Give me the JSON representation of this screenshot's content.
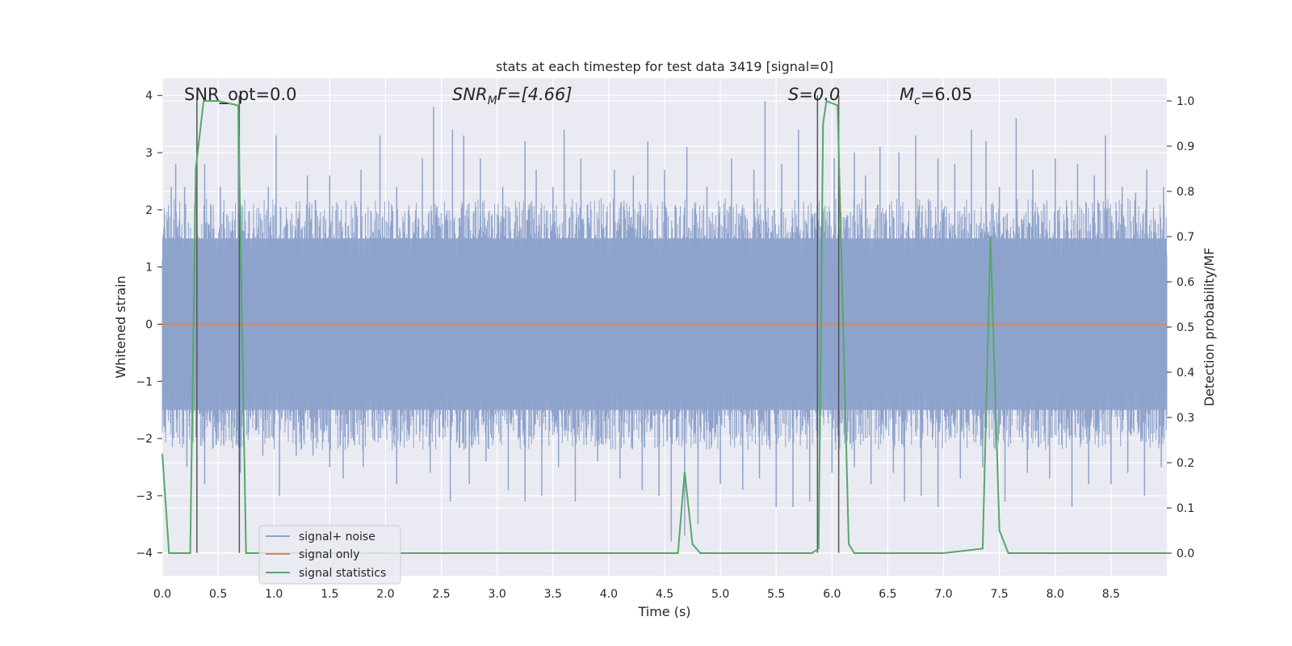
{
  "chart_data": {
    "type": "line",
    "title": "stats at each timestep for test data 3419 [signal=0]",
    "xlabel": "Time (s)",
    "ylabel": "Whitened strain",
    "ylabel_right": "Detection probability/MF",
    "xlim": [
      0.0,
      9.0
    ],
    "ylim": [
      -4.4,
      4.3
    ],
    "ylim_right": [
      -0.05,
      1.05
    ],
    "x_ticks": [
      "0.0",
      "0.5",
      "1.0",
      "1.5",
      "2.0",
      "2.5",
      "3.0",
      "3.5",
      "4.0",
      "4.5",
      "5.0",
      "5.5",
      "6.0",
      "6.5",
      "7.0",
      "7.5",
      "8.0",
      "8.5"
    ],
    "y_ticks": [
      "4",
      "3",
      "2",
      "1",
      "0",
      "−1",
      "−2",
      "−3",
      "−4"
    ],
    "y_tick_values": [
      4,
      3,
      2,
      1,
      0,
      -1,
      -2,
      -3,
      -4
    ],
    "y_right_ticks": [
      "1.0",
      "0.9",
      "0.8",
      "0.7",
      "0.6",
      "0.5",
      "0.4",
      "0.3",
      "0.2",
      "0.1",
      "0.0"
    ],
    "y_right_tick_values": [
      1.0,
      0.9,
      0.8,
      0.7,
      0.6,
      0.5,
      0.4,
      0.3,
      0.2,
      0.1,
      0.0
    ],
    "annotations": {
      "snr_opt": "SNR_opt=0.0",
      "snr_mf_prefix": "SNR",
      "snr_mf_sub": "M",
      "snr_mf_suffix": "F=[4.66]",
      "s_stat": "S=0.0",
      "mc_prefix": "M",
      "mc_sub": "c",
      "mc_suffix": "=6.05"
    },
    "series": [
      {
        "name": "signal+ noise",
        "color": "#8ea3cc",
        "axis": "left",
        "description_values": "dense noise, approx uniform band ±1.5 with spikes to ±3.9",
        "spikes_up": [
          [
            0.02,
            1.9
          ],
          [
            0.08,
            2.4
          ],
          [
            0.12,
            2.8
          ],
          [
            0.2,
            2.4
          ],
          [
            0.38,
            2.8
          ],
          [
            0.52,
            2.4
          ],
          [
            0.68,
            3.7
          ],
          [
            0.95,
            2.4
          ],
          [
            1.02,
            3.3
          ],
          [
            1.3,
            2.6
          ],
          [
            1.5,
            2.6
          ],
          [
            1.78,
            2.7
          ],
          [
            1.95,
            3.3
          ],
          [
            2.1,
            2.4
          ],
          [
            2.33,
            2.9
          ],
          [
            2.43,
            3.8
          ],
          [
            2.6,
            3.4
          ],
          [
            2.7,
            3.3
          ],
          [
            2.85,
            2.9
          ],
          [
            3.05,
            2.4
          ],
          [
            3.25,
            3.2
          ],
          [
            3.35,
            2.7
          ],
          [
            3.5,
            2.4
          ],
          [
            3.6,
            3.4
          ],
          [
            3.75,
            2.9
          ],
          [
            4.05,
            2.7
          ],
          [
            4.22,
            2.6
          ],
          [
            4.35,
            3.2
          ],
          [
            4.5,
            2.7
          ],
          [
            4.7,
            3.1
          ],
          [
            4.88,
            2.4
          ],
          [
            5.1,
            2.9
          ],
          [
            5.3,
            2.7
          ],
          [
            5.4,
            3.9
          ],
          [
            5.55,
            2.8
          ],
          [
            5.7,
            3.4
          ],
          [
            5.85,
            1.7
          ],
          [
            6.02,
            2.9
          ],
          [
            6.2,
            3.0
          ],
          [
            6.3,
            2.6
          ],
          [
            6.43,
            3.1
          ],
          [
            6.6,
            3.0
          ],
          [
            6.75,
            3.3
          ],
          [
            6.95,
            2.9
          ],
          [
            7.1,
            2.8
          ],
          [
            7.25,
            3.4
          ],
          [
            7.38,
            3.2
          ],
          [
            7.5,
            2.4
          ],
          [
            7.65,
            3.6
          ],
          [
            7.8,
            2.7
          ],
          [
            8.0,
            2.9
          ],
          [
            8.2,
            2.8
          ],
          [
            8.35,
            2.6
          ],
          [
            8.45,
            3.3
          ],
          [
            8.6,
            2.4
          ],
          [
            8.72,
            2.3
          ],
          [
            8.82,
            2.7
          ],
          [
            8.97,
            2.4
          ]
        ],
        "spikes_down": [
          [
            0.02,
            -1.8
          ],
          [
            0.1,
            -2.0
          ],
          [
            0.22,
            -2.5
          ],
          [
            0.38,
            -2.8
          ],
          [
            0.55,
            -2.1
          ],
          [
            0.7,
            -2.6
          ],
          [
            0.9,
            -2.3
          ],
          [
            1.05,
            -3.0
          ],
          [
            1.2,
            -2.3
          ],
          [
            1.35,
            -2.3
          ],
          [
            1.5,
            -2.5
          ],
          [
            1.62,
            -2.7
          ],
          [
            1.8,
            -2.5
          ],
          [
            2.1,
            -2.8
          ],
          [
            2.4,
            -2.6
          ],
          [
            2.58,
            -3.1
          ],
          [
            2.75,
            -2.8
          ],
          [
            2.9,
            -2.4
          ],
          [
            3.1,
            -2.9
          ],
          [
            3.25,
            -3.1
          ],
          [
            3.4,
            -3.0
          ],
          [
            3.55,
            -2.5
          ],
          [
            3.7,
            -3.1
          ],
          [
            3.9,
            -2.4
          ],
          [
            4.1,
            -2.7
          ],
          [
            4.3,
            -2.9
          ],
          [
            4.45,
            -3.0
          ],
          [
            4.56,
            -3.8
          ],
          [
            4.68,
            -3.7
          ],
          [
            4.8,
            -3.5
          ],
          [
            5.0,
            -2.8
          ],
          [
            5.2,
            -2.9
          ],
          [
            5.35,
            -2.7
          ],
          [
            5.5,
            -3.2
          ],
          [
            5.65,
            -3.2
          ],
          [
            5.8,
            -3.1
          ],
          [
            6.0,
            -2.6
          ],
          [
            6.2,
            -2.5
          ],
          [
            6.35,
            -2.8
          ],
          [
            6.55,
            -2.6
          ],
          [
            6.65,
            -3.1
          ],
          [
            6.8,
            -3.0
          ],
          [
            6.95,
            -3.2
          ],
          [
            7.15,
            -2.7
          ],
          [
            7.35,
            -2.5
          ],
          [
            7.55,
            -3.1
          ],
          [
            7.75,
            -2.6
          ],
          [
            7.95,
            -2.7
          ],
          [
            8.15,
            -3.2
          ],
          [
            8.3,
            -2.8
          ],
          [
            8.5,
            -2.8
          ],
          [
            8.65,
            -2.6
          ],
          [
            8.8,
            -3.0
          ],
          [
            8.95,
            -2.5
          ]
        ]
      },
      {
        "name": "signal only",
        "color": "#dd8452",
        "axis": "left",
        "x": [
          0.0,
          9.0
        ],
        "y": [
          0.0,
          0.0
        ]
      },
      {
        "name": "signal statistics",
        "color": "#55a868",
        "axis": "right",
        "x": [
          0.0,
          0.06,
          0.25,
          0.3,
          0.37,
          0.5,
          0.68,
          0.75,
          0.95,
          1.5,
          2.0,
          3.0,
          4.0,
          4.5,
          4.62,
          4.68,
          4.75,
          4.82,
          5.0,
          5.5,
          5.82,
          5.88,
          5.92,
          5.95,
          6.05,
          6.15,
          6.2,
          6.5,
          7.0,
          7.35,
          7.42,
          7.5,
          7.58,
          8.0,
          8.5,
          9.0
        ],
        "y": [
          0.22,
          0.0,
          0.0,
          0.85,
          1.0,
          1.0,
          0.99,
          0.0,
          0.0,
          0.0,
          0.0,
          0.0,
          0.0,
          0.0,
          0.0,
          0.18,
          0.02,
          0.0,
          0.0,
          0.0,
          0.0,
          0.01,
          0.95,
          1.0,
          0.99,
          0.02,
          0.0,
          0.0,
          0.0,
          0.01,
          0.7,
          0.05,
          0.0,
          0.0,
          0.0,
          0.0
        ]
      }
    ],
    "vlines": [
      0.31,
      0.69,
      5.87,
      6.06
    ],
    "legend": {
      "placement": "lower-left",
      "entries": [
        "signal+ noise",
        "signal only",
        "signal statistics"
      ]
    },
    "grid": true,
    "colors": {
      "plot_bg": "#eaeaf2",
      "grid": "#ffffff",
      "vline": "#555555",
      "text": "#262626"
    }
  }
}
